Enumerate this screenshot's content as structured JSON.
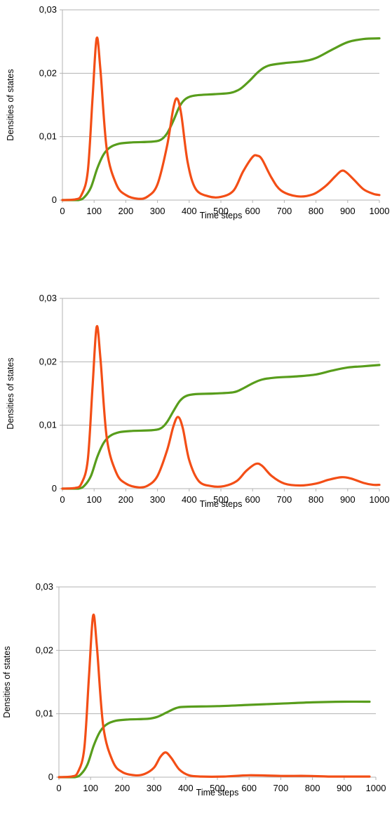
{
  "chart_data": [
    {
      "type": "line",
      "title": "",
      "xlabel": "Time steps",
      "ylabel": "Densities of states",
      "xlim": [
        0,
        1000
      ],
      "ylim": [
        0,
        0.03
      ],
      "x_ticks": [
        "0",
        "100",
        "200",
        "300",
        "400",
        "500",
        "600",
        "700",
        "800",
        "900",
        "1000"
      ],
      "y_ticks": [
        "0",
        "0,01",
        "0,02",
        "0,03"
      ],
      "grid": "horizontal",
      "legend": "none",
      "series": [
        {
          "color": "#589d1c",
          "points": [
            [
              0,
              0
            ],
            [
              50,
              0
            ],
            [
              70,
              0.0005
            ],
            [
              90,
              0.002
            ],
            [
              110,
              0.005
            ],
            [
              130,
              0.0072
            ],
            [
              150,
              0.0083
            ],
            [
              180,
              0.0089
            ],
            [
              220,
              0.0091
            ],
            [
              280,
              0.0092
            ],
            [
              310,
              0.0095
            ],
            [
              330,
              0.0105
            ],
            [
              350,
              0.0125
            ],
            [
              370,
              0.0148
            ],
            [
              390,
              0.016
            ],
            [
              420,
              0.0165
            ],
            [
              480,
              0.0167
            ],
            [
              530,
              0.0169
            ],
            [
              560,
              0.0175
            ],
            [
              590,
              0.0188
            ],
            [
              620,
              0.0203
            ],
            [
              650,
              0.0212
            ],
            [
              700,
              0.0216
            ],
            [
              760,
              0.0219
            ],
            [
              800,
              0.0224
            ],
            [
              850,
              0.0237
            ],
            [
              900,
              0.0249
            ],
            [
              950,
              0.0254
            ],
            [
              1000,
              0.0255
            ]
          ]
        },
        {
          "color": "#f34e16",
          "points": [
            [
              0,
              0
            ],
            [
              40,
              0.0001
            ],
            [
              60,
              0.0008
            ],
            [
              80,
              0.0045
            ],
            [
              95,
              0.016
            ],
            [
              108,
              0.0255
            ],
            [
              120,
              0.0205
            ],
            [
              140,
              0.008
            ],
            [
              170,
              0.0025
            ],
            [
              200,
              0.0008
            ],
            [
              240,
              0.0002
            ],
            [
              270,
              0.0006
            ],
            [
              300,
              0.0025
            ],
            [
              330,
              0.0085
            ],
            [
              350,
              0.0145
            ],
            [
              362,
              0.016
            ],
            [
              375,
              0.0135
            ],
            [
              395,
              0.006
            ],
            [
              420,
              0.0018
            ],
            [
              460,
              0.0006
            ],
            [
              500,
              0.0005
            ],
            [
              540,
              0.0015
            ],
            [
              570,
              0.0045
            ],
            [
              600,
              0.0068
            ],
            [
              615,
              0.007
            ],
            [
              630,
              0.0064
            ],
            [
              660,
              0.0035
            ],
            [
              690,
              0.0015
            ],
            [
              740,
              0.0006
            ],
            [
              790,
              0.0009
            ],
            [
              830,
              0.0022
            ],
            [
              860,
              0.0037
            ],
            [
              880,
              0.0046
            ],
            [
              895,
              0.0044
            ],
            [
              920,
              0.0032
            ],
            [
              950,
              0.0017
            ],
            [
              980,
              0.001
            ],
            [
              1000,
              0.0008
            ]
          ]
        }
      ]
    },
    {
      "type": "line",
      "title": "",
      "xlabel": "Time steps",
      "ylabel": "Densities of states",
      "xlim": [
        0,
        1000
      ],
      "ylim": [
        0,
        0.03
      ],
      "x_ticks": [
        "0",
        "100",
        "200",
        "300",
        "400",
        "500",
        "600",
        "700",
        "800",
        "900",
        "1000"
      ],
      "y_ticks": [
        "0",
        "0,01",
        "0,02",
        "0,03"
      ],
      "grid": "horizontal",
      "legend": "none",
      "series": [
        {
          "color": "#589d1c",
          "points": [
            [
              0,
              0
            ],
            [
              50,
              0
            ],
            [
              70,
              0.0005
            ],
            [
              90,
              0.002
            ],
            [
              110,
              0.005
            ],
            [
              130,
              0.0072
            ],
            [
              150,
              0.0083
            ],
            [
              180,
              0.0089
            ],
            [
              220,
              0.0091
            ],
            [
              280,
              0.0092
            ],
            [
              310,
              0.0095
            ],
            [
              330,
              0.0105
            ],
            [
              350,
              0.0122
            ],
            [
              370,
              0.0138
            ],
            [
              390,
              0.0146
            ],
            [
              420,
              0.0149
            ],
            [
              480,
              0.015
            ],
            [
              540,
              0.0152
            ],
            [
              570,
              0.0158
            ],
            [
              600,
              0.0166
            ],
            [
              630,
              0.0172
            ],
            [
              670,
              0.0175
            ],
            [
              740,
              0.0177
            ],
            [
              800,
              0.018
            ],
            [
              850,
              0.0186
            ],
            [
              900,
              0.0191
            ],
            [
              950,
              0.0193
            ],
            [
              1000,
              0.0195
            ]
          ]
        },
        {
          "color": "#f34e16",
          "points": [
            [
              0,
              0
            ],
            [
              40,
              0.0001
            ],
            [
              60,
              0.0008
            ],
            [
              80,
              0.0045
            ],
            [
              95,
              0.016
            ],
            [
              108,
              0.0255
            ],
            [
              120,
              0.0205
            ],
            [
              140,
              0.008
            ],
            [
              170,
              0.0025
            ],
            [
              200,
              0.0008
            ],
            [
              240,
              0.0002
            ],
            [
              270,
              0.0005
            ],
            [
              300,
              0.002
            ],
            [
              330,
              0.006
            ],
            [
              350,
              0.0098
            ],
            [
              365,
              0.0113
            ],
            [
              380,
              0.0095
            ],
            [
              400,
              0.0045
            ],
            [
              430,
              0.0012
            ],
            [
              470,
              0.0004
            ],
            [
              510,
              0.0004
            ],
            [
              550,
              0.0012
            ],
            [
              580,
              0.0028
            ],
            [
              610,
              0.0039
            ],
            [
              630,
              0.0036
            ],
            [
              660,
              0.002
            ],
            [
              700,
              0.0008
            ],
            [
              750,
              0.0005
            ],
            [
              800,
              0.0008
            ],
            [
              840,
              0.0014
            ],
            [
              880,
              0.0018
            ],
            [
              910,
              0.0016
            ],
            [
              950,
              0.0009
            ],
            [
              980,
              0.0006
            ],
            [
              1000,
              0.0006
            ]
          ]
        }
      ]
    },
    {
      "type": "line",
      "title": "",
      "xlabel": "Time steps",
      "ylabel": "Densities of states",
      "xlim": [
        0,
        1000
      ],
      "ylim": [
        0,
        0.03
      ],
      "x_ticks": [
        "0",
        "100",
        "200",
        "300",
        "400",
        "500",
        "600",
        "700",
        "800",
        "900",
        "1000"
      ],
      "y_ticks": [
        "0",
        "0,01",
        "0,02",
        "0,03"
      ],
      "grid": "horizontal",
      "legend": "none",
      "series": [
        {
          "color": "#589d1c",
          "points": [
            [
              0,
              0
            ],
            [
              50,
              0
            ],
            [
              70,
              0.0005
            ],
            [
              90,
              0.002
            ],
            [
              110,
              0.005
            ],
            [
              130,
              0.0072
            ],
            [
              150,
              0.0083
            ],
            [
              180,
              0.0089
            ],
            [
              220,
              0.0091
            ],
            [
              280,
              0.0092
            ],
            [
              310,
              0.0095
            ],
            [
              340,
              0.0102
            ],
            [
              370,
              0.0109
            ],
            [
              400,
              0.0111
            ],
            [
              500,
              0.0112
            ],
            [
              600,
              0.0114
            ],
            [
              700,
              0.0116
            ],
            [
              800,
              0.0118
            ],
            [
              900,
              0.0119
            ],
            [
              980,
              0.0119
            ]
          ]
        },
        {
          "color": "#f34e16",
          "points": [
            [
              0,
              0
            ],
            [
              40,
              0.0001
            ],
            [
              60,
              0.0008
            ],
            [
              80,
              0.0045
            ],
            [
              95,
              0.016
            ],
            [
              108,
              0.0255
            ],
            [
              120,
              0.0205
            ],
            [
              140,
              0.008
            ],
            [
              170,
              0.0025
            ],
            [
              200,
              0.0008
            ],
            [
              240,
              0.0003
            ],
            [
              270,
              0.0005
            ],
            [
              300,
              0.0015
            ],
            [
              320,
              0.0032
            ],
            [
              337,
              0.0039
            ],
            [
              355,
              0.003
            ],
            [
              380,
              0.0012
            ],
            [
              410,
              0.0003
            ],
            [
              450,
              0.0001
            ],
            [
              520,
              0.0001
            ],
            [
              600,
              0.0003
            ],
            [
              700,
              0.0002
            ],
            [
              780,
              0.0002
            ],
            [
              850,
              0.0001
            ],
            [
              920,
              0.0001
            ],
            [
              980,
              0.0001
            ]
          ]
        }
      ]
    }
  ]
}
